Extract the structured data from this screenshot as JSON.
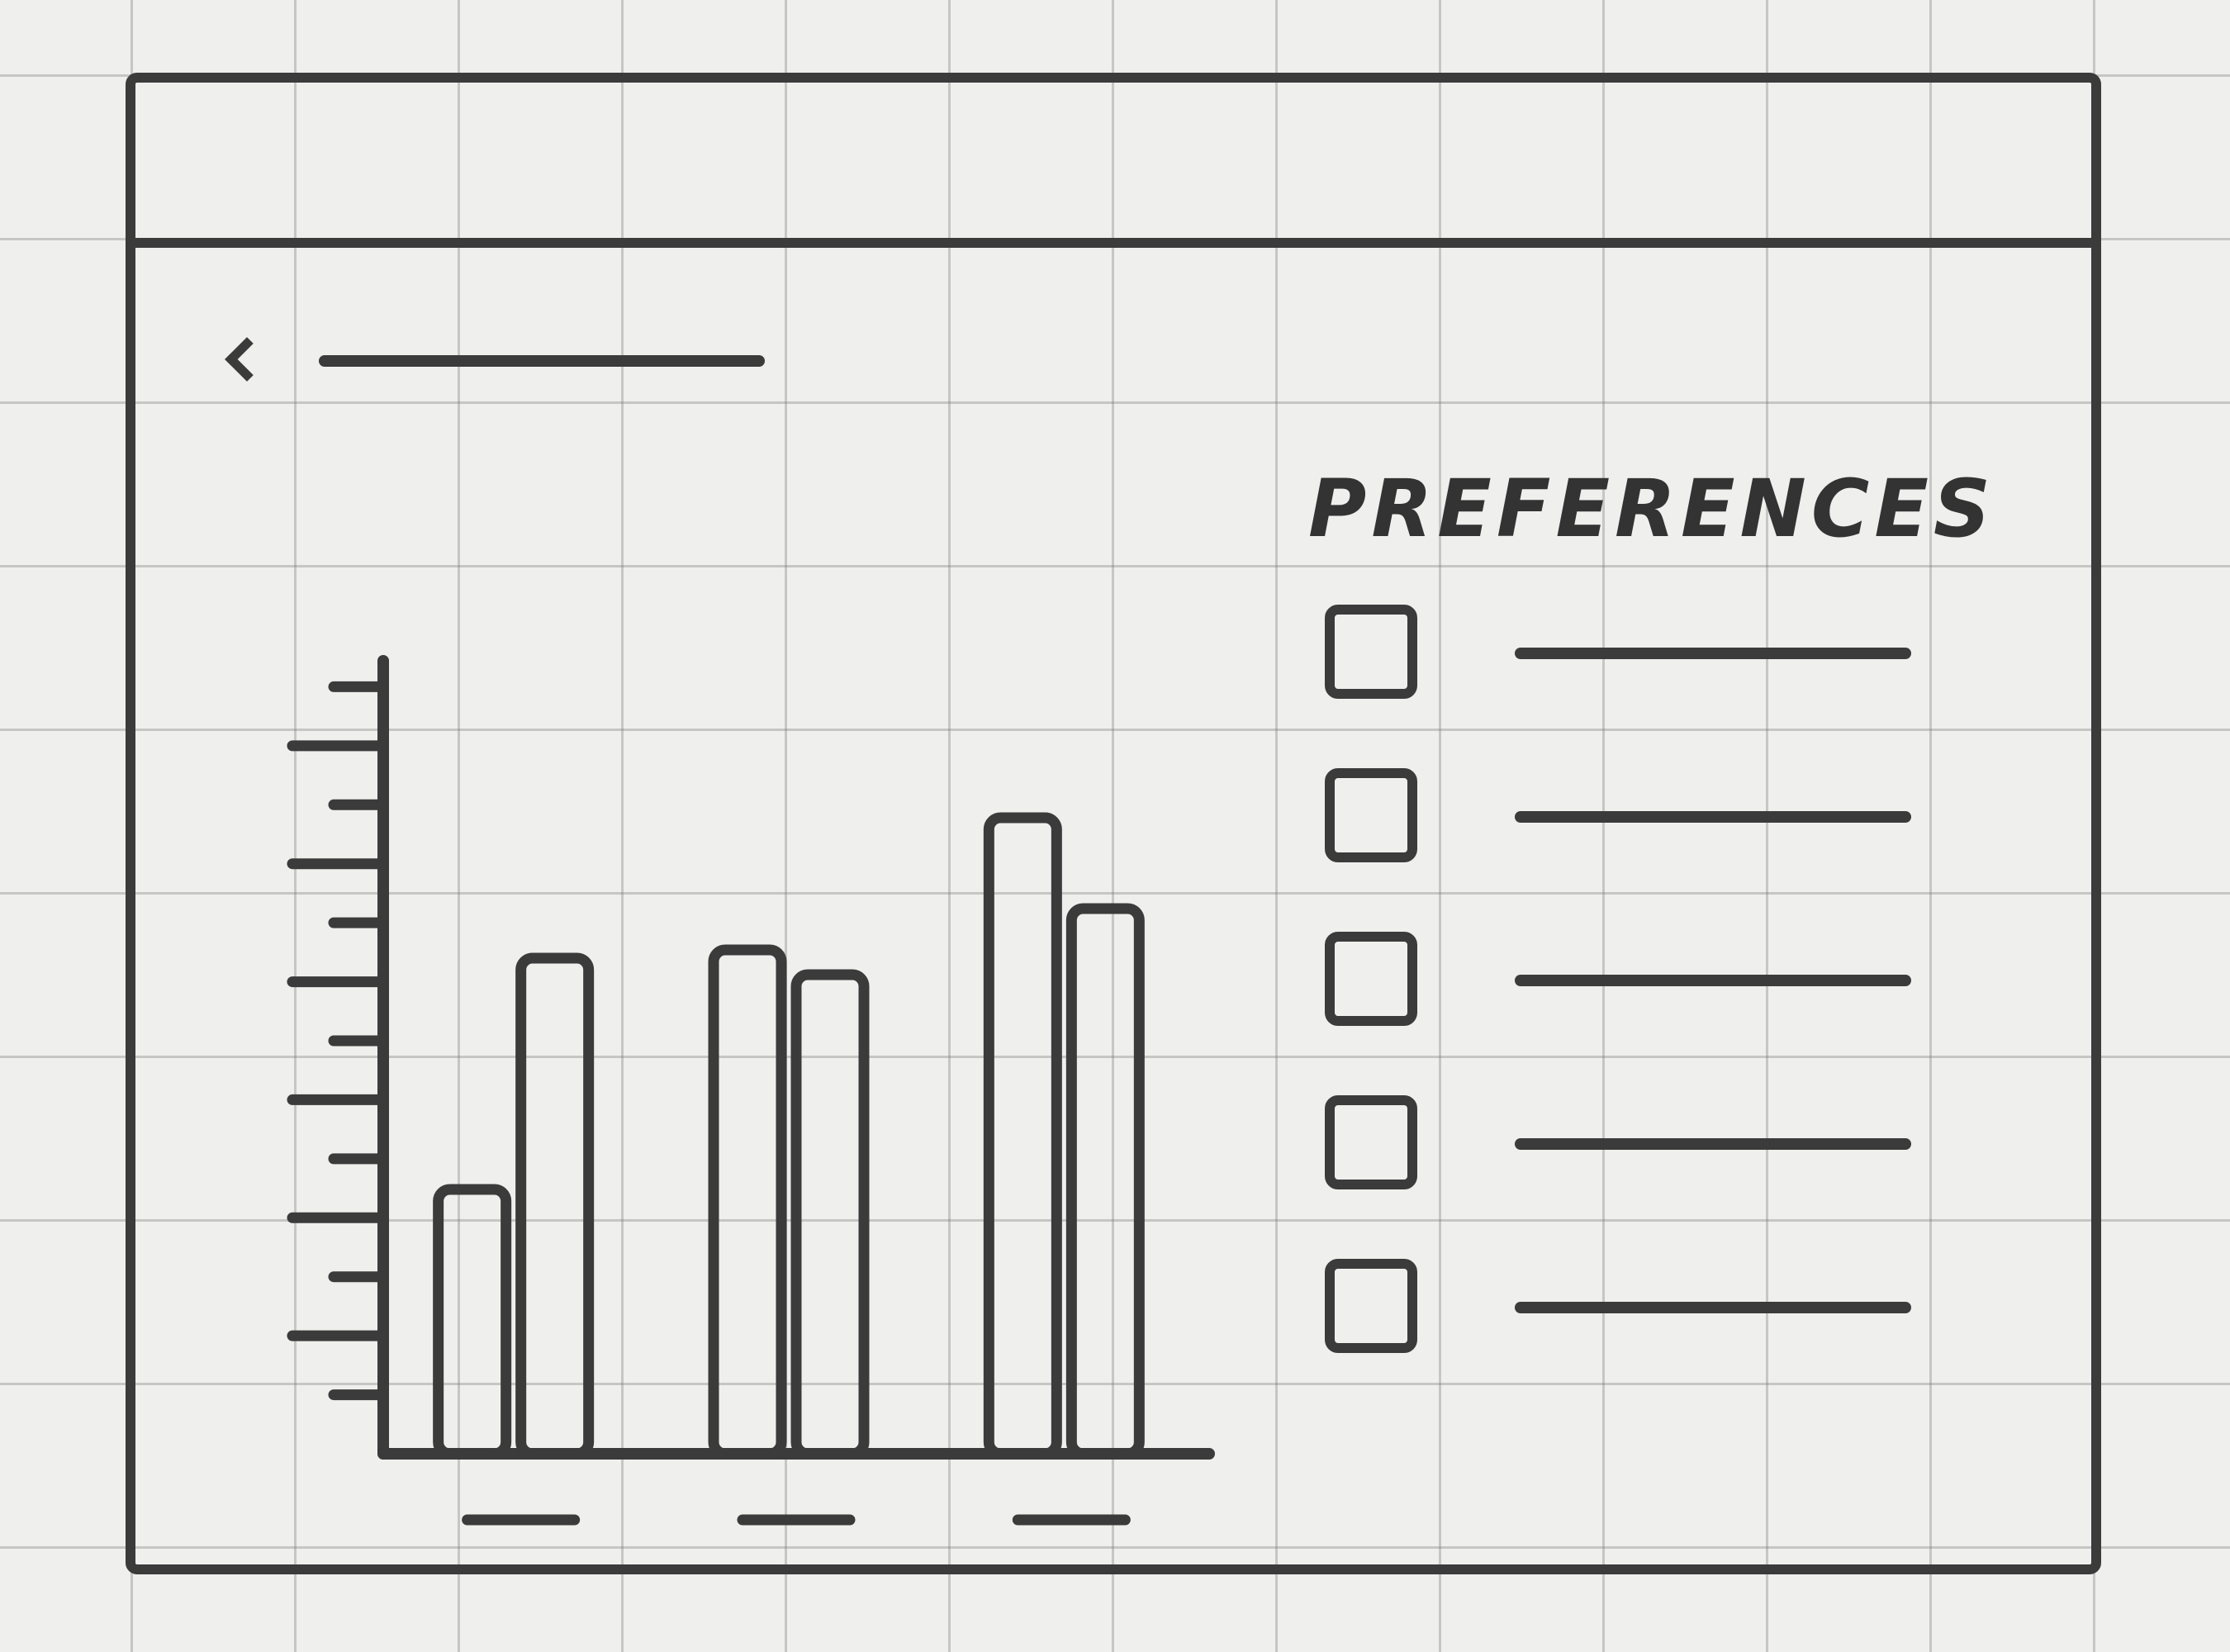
{
  "window": {
    "title": ""
  },
  "header": {
    "back_icon": "chevron-left-icon",
    "title": ""
  },
  "chart_data": {
    "type": "bar",
    "title": "",
    "xlabel": "",
    "ylabel": "",
    "categories": [
      "",
      "",
      ""
    ],
    "series": [
      {
        "values": [
          32,
          61,
          77
        ]
      },
      {
        "values": [
          60,
          58,
          66
        ]
      }
    ],
    "ylim": [
      0,
      100
    ],
    "grid": false
  },
  "preferences": {
    "heading": "PREFERENCES",
    "items": [
      {
        "label": "",
        "checked": false
      },
      {
        "label": "",
        "checked": false
      },
      {
        "label": "",
        "checked": false
      },
      {
        "label": "",
        "checked": false
      },
      {
        "label": "",
        "checked": false
      }
    ]
  },
  "colors": {
    "ink": "#3b3b3b",
    "paper": "#efefed"
  }
}
